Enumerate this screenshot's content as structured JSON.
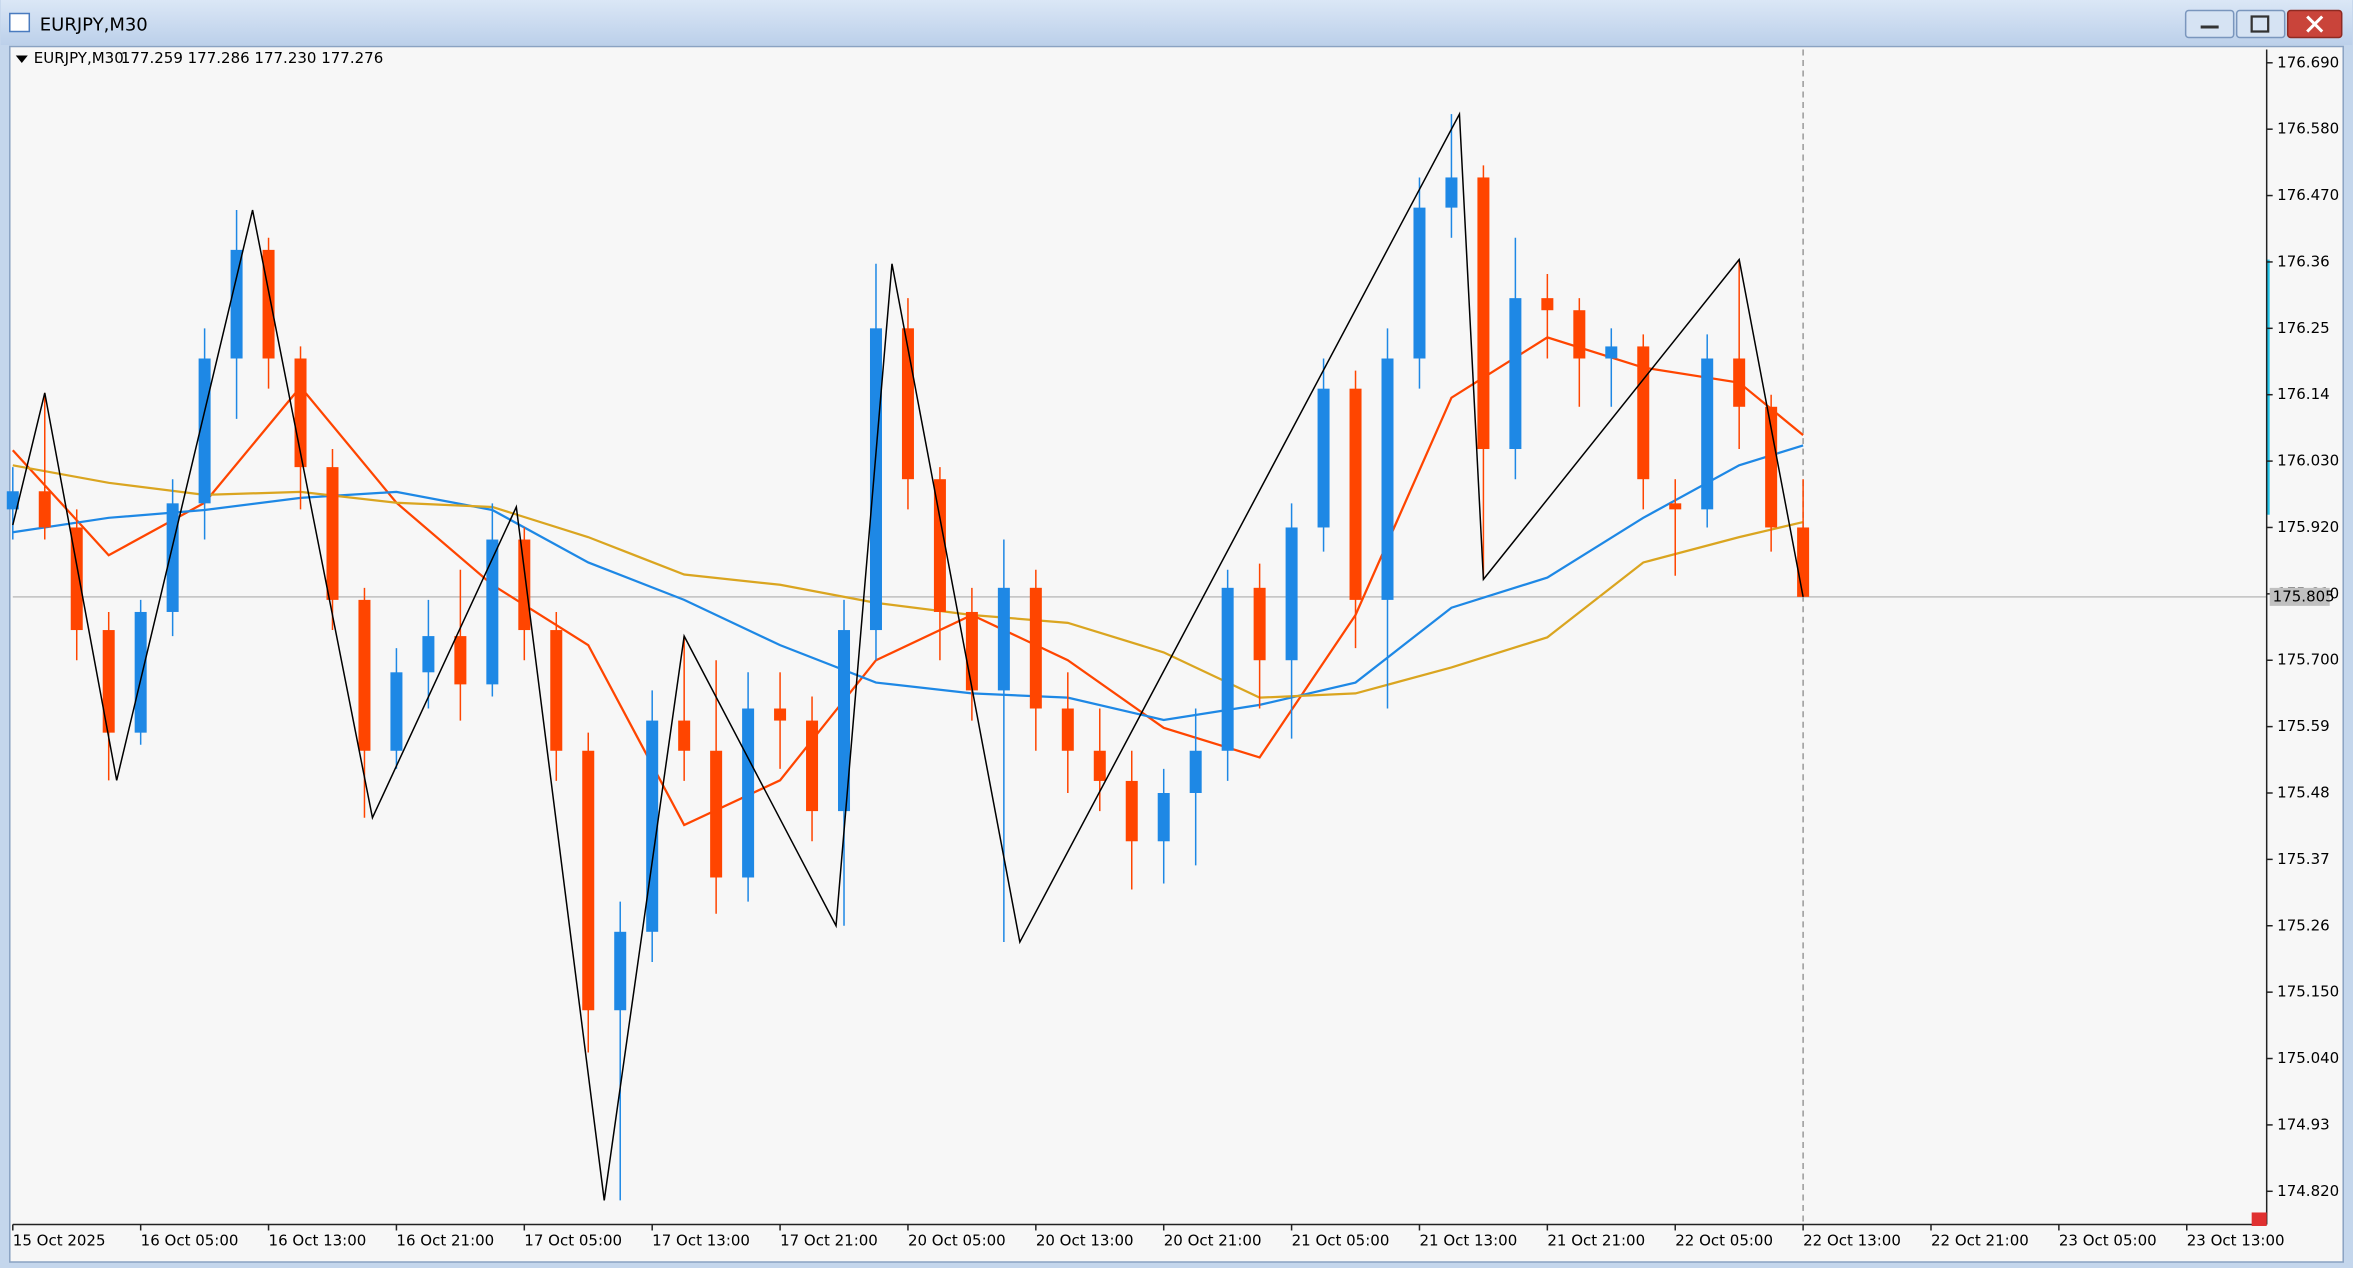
{
  "window": {
    "title": "EURJPY,M30"
  },
  "chart_data": {
    "type": "candlestick",
    "symbol": "EURJPY,M30",
    "quote": "177.259 177.286 177.230 177.276",
    "xlim": [
      0,
      282
    ],
    "ylim": [
      174.765,
      176.712
    ],
    "xticks": [
      {
        "value": 0,
        "label": "15 Oct 2025"
      },
      {
        "value": 16,
        "label": "16 Oct 05:00"
      },
      {
        "value": 32,
        "label": "16 Oct 13:00"
      },
      {
        "value": 48,
        "label": "16 Oct 21:00"
      },
      {
        "value": 64,
        "label": "17 Oct 05:00"
      },
      {
        "value": 80,
        "label": "17 Oct 13:00"
      },
      {
        "value": 96,
        "label": "17 Oct 21:00"
      },
      {
        "value": 112,
        "label": "20 Oct 05:00"
      },
      {
        "value": 128,
        "label": "20 Oct 13:00"
      },
      {
        "value": 144,
        "label": "20 Oct 21:00"
      },
      {
        "value": 160,
        "label": "21 Oct 05:00"
      },
      {
        "value": 176,
        "label": "21 Oct 13:00"
      },
      {
        "value": 192,
        "label": "21 Oct 21:00"
      },
      {
        "value": 208,
        "label": "22 Oct 05:00"
      },
      {
        "value": 224,
        "label": "22 Oct 13:00"
      },
      {
        "value": 240,
        "label": "22 Oct 21:00"
      },
      {
        "value": 256,
        "label": "23 Oct 05:00"
      },
      {
        "value": 272,
        "label": "23 Oct 13:00"
      }
    ],
    "yticks": [
      {
        "value": 176.69,
        "label": "176.690"
      },
      {
        "value": 176.58,
        "label": "176.580"
      },
      {
        "value": 176.47,
        "label": "176.470"
      },
      176.36,
      176.25,
      176.14,
      {
        "value": 176.03,
        "label": "176.030"
      },
      {
        "value": 175.92,
        "label": "175.920"
      },
      {
        "value": 175.81,
        "label": "175.810"
      },
      {
        "value": 175.7,
        "label": "175.700"
      },
      175.59,
      175.48,
      175.37,
      175.26,
      {
        "value": 175.15,
        "label": "175.150"
      },
      {
        "value": 175.04,
        "label": "175.040"
      },
      174.93,
      {
        "value": 174.82,
        "label": "174.820"
      }
    ],
    "current_price": 175.805,
    "up_color": "#1e88e5",
    "down_color": "#ff4500",
    "candles": {
      "x": [
        0,
        4,
        8,
        12,
        16,
        20,
        24,
        28,
        32,
        36,
        40,
        44,
        48,
        52,
        56,
        60,
        64,
        68,
        72,
        76,
        80,
        84,
        88,
        92,
        96,
        100,
        104,
        108,
        112,
        116,
        120,
        124,
        128,
        132,
        136,
        140,
        144,
        148,
        152,
        156,
        160,
        164,
        168,
        172,
        176,
        180,
        184,
        188,
        192,
        196,
        200,
        204,
        208,
        212,
        216,
        220,
        224
      ],
      "open": [
        175.95,
        175.98,
        175.92,
        175.75,
        175.58,
        175.78,
        175.96,
        176.2,
        176.38,
        176.2,
        176.02,
        175.8,
        175.55,
        175.68,
        175.74,
        175.66,
        175.9,
        175.75,
        175.55,
        175.12,
        175.25,
        175.6,
        175.55,
        175.34,
        175.62,
        175.6,
        175.45,
        175.75,
        176.25,
        176.0,
        175.78,
        175.65,
        175.82,
        175.62,
        175.55,
        175.5,
        175.4,
        175.48,
        175.55,
        175.82,
        175.7,
        175.92,
        176.15,
        175.8,
        176.2,
        176.45,
        176.5,
        176.05,
        176.3,
        176.28,
        176.2,
        176.22,
        175.96,
        175.95,
        176.2,
        176.12,
        175.92
      ],
      "high": [
        176.02,
        176.143,
        175.95,
        175.78,
        175.8,
        176.0,
        176.25,
        176.446,
        176.4,
        176.22,
        176.05,
        175.82,
        175.72,
        175.8,
        175.85,
        175.96,
        175.92,
        175.78,
        175.58,
        175.3,
        175.65,
        175.74,
        175.7,
        175.68,
        175.68,
        175.64,
        175.8,
        176.357,
        176.3,
        176.02,
        175.82,
        175.9,
        175.85,
        175.68,
        175.62,
        175.55,
        175.52,
        175.62,
        175.85,
        175.86,
        175.96,
        176.2,
        176.18,
        176.25,
        176.5,
        176.605,
        176.52,
        176.4,
        176.34,
        176.3,
        176.25,
        176.24,
        176.0,
        176.24,
        176.364,
        176.14,
        176.0
      ],
      "low": [
        175.9,
        175.9,
        175.7,
        175.501,
        175.56,
        175.74,
        175.9,
        176.1,
        176.15,
        175.95,
        175.75,
        175.439,
        175.52,
        175.62,
        175.6,
        175.64,
        175.7,
        175.5,
        175.05,
        174.805,
        175.2,
        175.5,
        175.28,
        175.3,
        175.52,
        175.4,
        175.26,
        175.7,
        175.95,
        175.7,
        175.6,
        175.233,
        175.55,
        175.48,
        175.45,
        175.32,
        175.33,
        175.36,
        175.5,
        175.62,
        175.57,
        175.88,
        175.72,
        175.62,
        176.15,
        176.4,
        175.834,
        176.0,
        176.2,
        176.12,
        176.12,
        175.95,
        175.84,
        175.92,
        176.05,
        175.88,
        175.805
      ],
      "close": [
        175.98,
        175.92,
        175.75,
        175.58,
        175.78,
        175.96,
        176.2,
        176.38,
        176.2,
        176.02,
        175.8,
        175.55,
        175.68,
        175.74,
        175.66,
        175.9,
        175.75,
        175.55,
        175.12,
        175.25,
        175.6,
        175.55,
        175.34,
        175.62,
        175.6,
        175.45,
        175.75,
        176.25,
        176.0,
        175.78,
        175.65,
        175.82,
        175.62,
        175.55,
        175.5,
        175.4,
        175.48,
        175.55,
        175.82,
        175.7,
        175.92,
        176.15,
        175.8,
        176.2,
        176.45,
        176.5,
        176.05,
        176.3,
        176.28,
        176.2,
        176.22,
        176.0,
        175.95,
        176.2,
        176.12,
        175.92,
        175.805
      ]
    },
    "ma_x": [
      0,
      12,
      24,
      36,
      48,
      60,
      72,
      84,
      96,
      108,
      120,
      132,
      144,
      156,
      168,
      180,
      192,
      204,
      216,
      224
    ],
    "series": [
      {
        "color": "#ff4500",
        "values": [
          176.048,
          175.874,
          175.961,
          176.153,
          175.961,
          175.825,
          175.725,
          175.427,
          175.501,
          175.7,
          175.775,
          175.7,
          175.588,
          175.539,
          175.775,
          176.135,
          176.235,
          176.185,
          176.16,
          176.073
        ]
      },
      {
        "color": "#1e88e5",
        "values": [
          175.912,
          175.936,
          175.949,
          175.969,
          175.979,
          175.949,
          175.862,
          175.8,
          175.725,
          175.663,
          175.645,
          175.638,
          175.601,
          175.626,
          175.663,
          175.787,
          175.837,
          175.936,
          176.023,
          176.056
        ]
      },
      {
        "color": "#daa520",
        "values": [
          176.023,
          175.994,
          175.974,
          175.979,
          175.961,
          175.954,
          175.904,
          175.842,
          175.825,
          175.795,
          175.775,
          175.762,
          175.713,
          175.638,
          175.645,
          175.688,
          175.738,
          175.862,
          175.904,
          175.929
        ]
      }
    ],
    "zigzag": {
      "color": "#000000",
      "x": [
        0,
        4,
        13,
        30,
        45,
        63,
        74,
        84,
        103,
        110,
        126,
        181,
        184,
        216,
        224
      ],
      "values": [
        175.924,
        176.143,
        175.501,
        176.446,
        175.439,
        175.954,
        174.805,
        175.74,
        175.26,
        176.357,
        175.233,
        176.605,
        175.834,
        176.364,
        175.805
      ]
    }
  }
}
